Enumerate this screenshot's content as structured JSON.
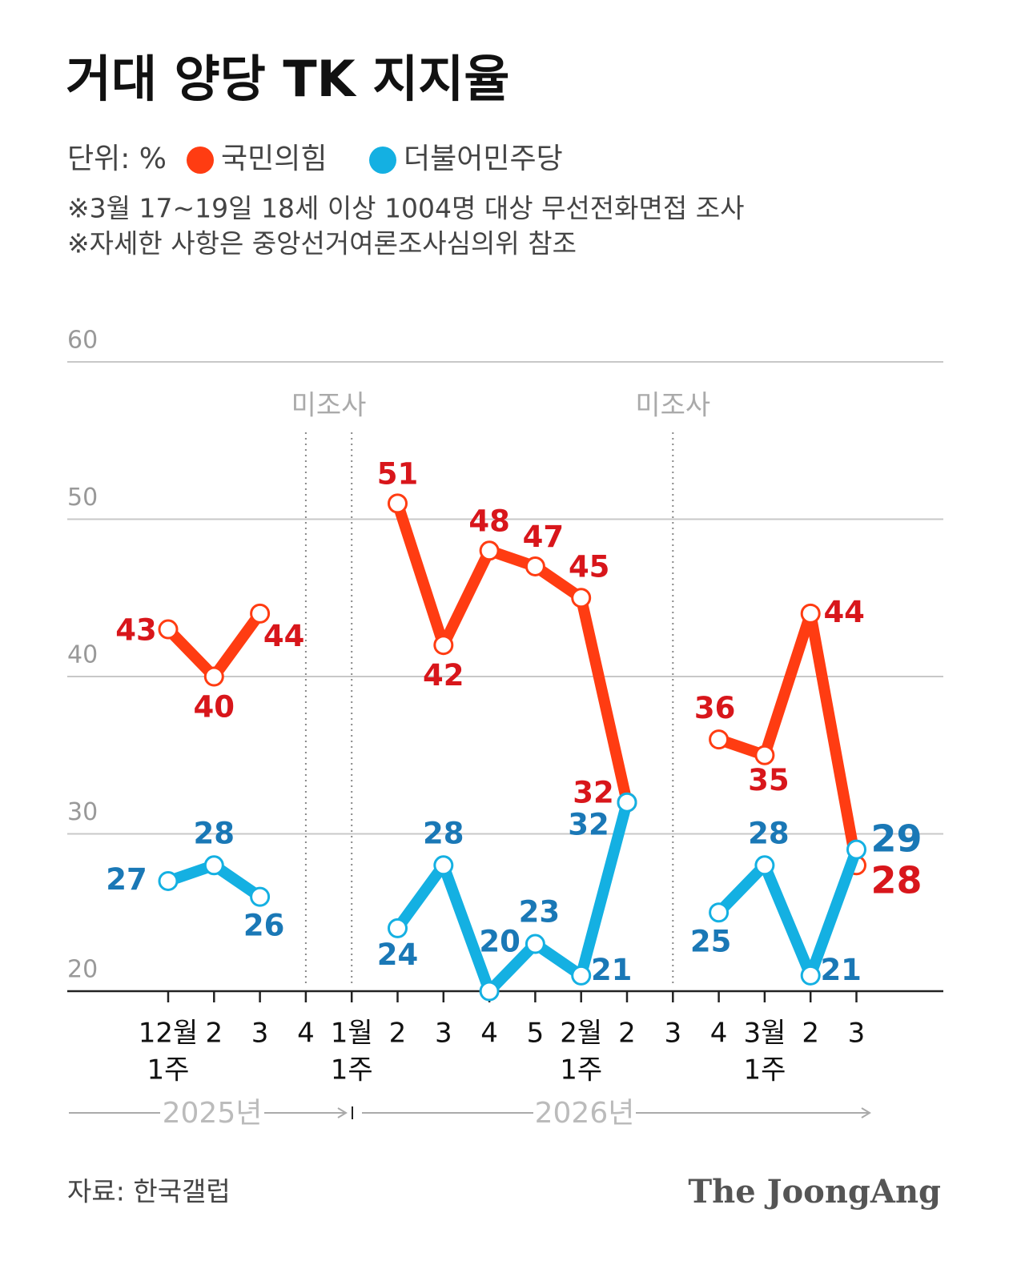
{
  "chart_data": {
    "type": "line",
    "title": "거대 양당 TK 지지율",
    "unit": "단위: %",
    "notes": [
      "※3월 17~19일 18세 이상 1004명 대상 무선전화면접 조사",
      "※자세한 사항은 중앙선거여론조사심의위 참조"
    ],
    "categories": [
      [
        "12월",
        "1주"
      ],
      [
        "2"
      ],
      [
        "3"
      ],
      [
        "4"
      ],
      [
        "1월",
        "1주"
      ],
      [
        "2"
      ],
      [
        "3"
      ],
      [
        "4"
      ],
      [
        "5"
      ],
      [
        "2월",
        "1주"
      ],
      [
        "2"
      ],
      [
        "3"
      ],
      [
        "4"
      ],
      [
        "3월",
        "1주"
      ],
      [
        "2"
      ],
      [
        "3"
      ]
    ],
    "series": [
      {
        "name": "국민의힘",
        "color": "#ff3c12",
        "label_color": "#d8161b",
        "values": [
          43,
          40,
          44,
          null,
          null,
          51,
          42,
          48,
          47,
          45,
          32,
          null,
          36,
          35,
          44,
          28
        ]
      },
      {
        "name": "더불어민주당",
        "color": "#14b0e2",
        "label_color": "#1a78b6",
        "values": [
          27,
          28,
          26,
          null,
          null,
          24,
          28,
          20,
          23,
          21,
          32,
          null,
          25,
          28,
          21,
          29
        ]
      }
    ],
    "ylim": [
      20,
      60
    ],
    "yticks": [
      20,
      30,
      40,
      50,
      60
    ],
    "grid": true,
    "gap_label": "미조사",
    "year_labels": [
      "2025년",
      "2026년"
    ],
    "source": "자료: 한국갤럽",
    "logo": "The JoongAng"
  }
}
